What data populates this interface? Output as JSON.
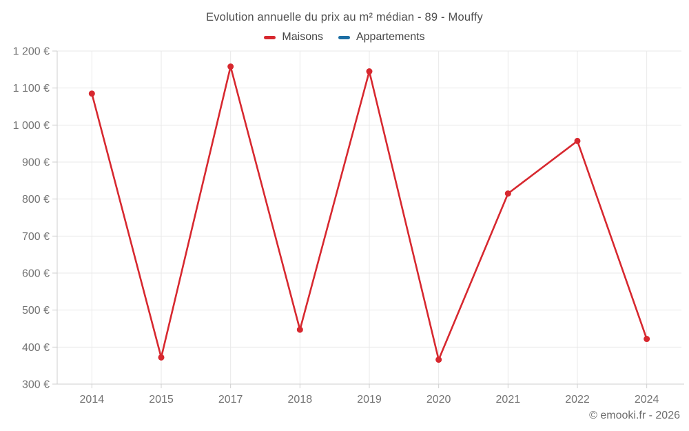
{
  "chart_data": {
    "type": "line",
    "title": "Evolution annuelle du prix au m² médian - 89 - Mouffy",
    "categories": [
      "2014",
      "2015",
      "2017",
      "2018",
      "2019",
      "2020",
      "2021",
      "2022",
      "2024"
    ],
    "series": [
      {
        "name": "Maisons",
        "color": "#d7282f",
        "values": [
          1085,
          372,
          1158,
          447,
          1145,
          366,
          815,
          957,
          422
        ]
      },
      {
        "name": "Appartements",
        "color": "#1c6ea4",
        "values": []
      }
    ],
    "ylabel": "",
    "xlabel": "",
    "ylim": [
      300,
      1200
    ],
    "ytick_step": 100,
    "ytick_suffix": " €",
    "grid": true,
    "legend_position": "top"
  },
  "copyright": "© emooki.fr - 2026",
  "colors": {
    "grid": "#e9e9e9",
    "axis": "#cfcfcf",
    "tick_text": "#737373",
    "title_text": "#4f4f4f",
    "legend_text": "#474747",
    "copyright_text": "#6e6e6e"
  }
}
